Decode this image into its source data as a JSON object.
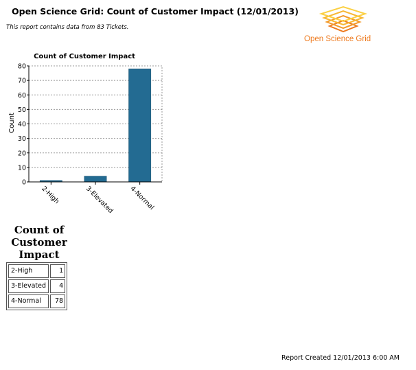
{
  "report": {
    "title": "Open Science Grid: Count of Customer Impact (12/01/2013)",
    "subtitle": "This report contains data from 83 Tickets.",
    "footer": "Report Created 12/01/2013 6:00 AM"
  },
  "logo": {
    "text": "Open Science Grid",
    "color": "#ee7a1e"
  },
  "colors": {
    "bar": "#236b92",
    "grid": "#999999"
  },
  "chart_data": {
    "type": "bar",
    "title": "Count of Customer Impact",
    "xlabel": "",
    "ylabel": "Count",
    "categories": [
      "2-High",
      "3-Elevated",
      "4-Normal"
    ],
    "values": [
      1,
      4,
      78
    ],
    "ylim": [
      0,
      80
    ],
    "yticks": [
      0,
      10,
      20,
      30,
      40,
      50,
      60,
      70,
      80
    ],
    "grid": true,
    "legend": "none"
  },
  "table": {
    "title": "Count of Customer Impact",
    "rows": [
      {
        "label": "2-High",
        "value": "1"
      },
      {
        "label": "3-Elevated",
        "value": "4"
      },
      {
        "label": "4-Normal",
        "value": "78"
      }
    ]
  }
}
